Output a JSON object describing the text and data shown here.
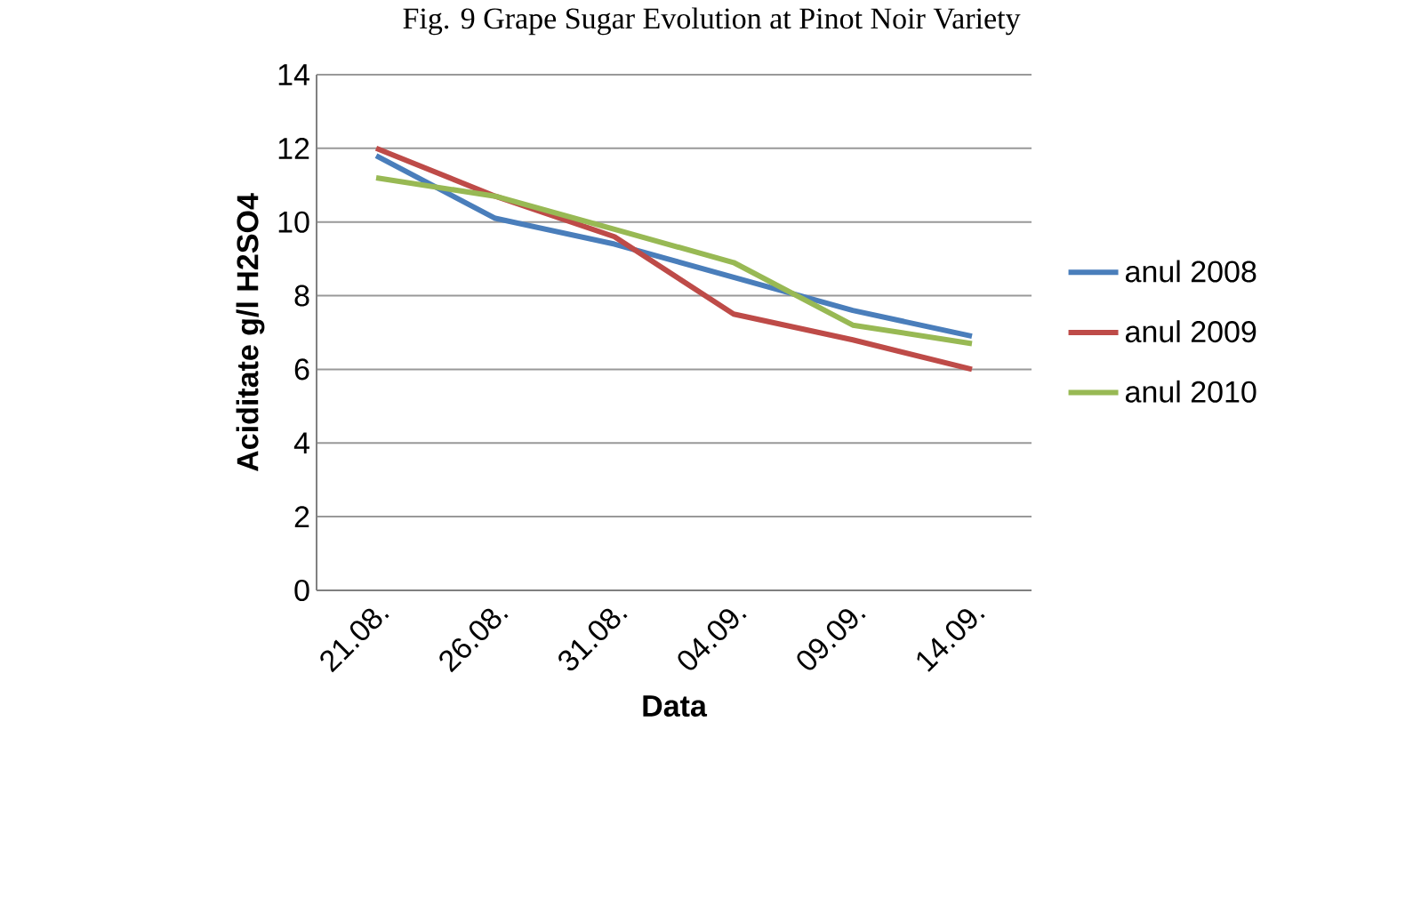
{
  "chart_data": {
    "type": "line",
    "title": "Fig. 9 Grape Sugar Evolution at Pinot Noir Variety",
    "xlabel": "Data",
    "ylabel": "Aciditate g/l H2SO4",
    "categories": [
      "21.08.",
      "26.08.",
      "31.08.",
      "04.09.",
      "09.09.",
      "14.09."
    ],
    "series": [
      {
        "name": "anul 2008",
        "color": "#4a7ebb",
        "values": [
          11.8,
          10.1,
          9.4,
          8.5,
          7.6,
          6.9
        ]
      },
      {
        "name": "anul 2009",
        "color": "#be4b48",
        "values": [
          12.0,
          10.7,
          9.6,
          7.5,
          6.8,
          6.0
        ]
      },
      {
        "name": "anul 2010",
        "color": "#98b954",
        "values": [
          11.2,
          10.7,
          9.8,
          8.9,
          7.2,
          6.7
        ]
      }
    ],
    "ylim": [
      0,
      14
    ],
    "yticks": [
      0,
      2,
      4,
      6,
      8,
      10,
      12,
      14
    ],
    "grid": "y",
    "legend": "right",
    "marker": "none",
    "line_style": "solid"
  }
}
